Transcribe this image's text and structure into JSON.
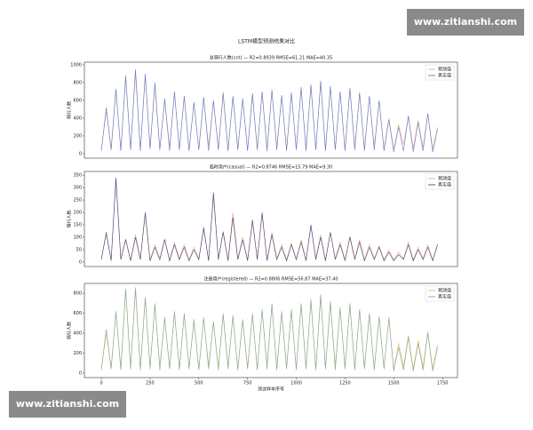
{
  "figure_title": "LSTM模型预测结果对比",
  "watermarks": [
    "www.zitianshi.com",
    "www.zitianshi.com"
  ],
  "chart_data": [
    {
      "type": "line",
      "title": "总骑行人数(cnt) — R2=0.8939  RMSE=61.21  MAE=40.35",
      "ylabel": "骑行人数",
      "x": [
        0,
        25,
        50,
        75,
        100,
        125,
        150,
        175,
        200,
        225,
        250,
        275,
        300,
        325,
        350,
        375,
        400,
        425,
        450,
        475,
        500,
        525,
        550,
        575,
        600,
        625,
        650,
        675,
        700,
        725,
        750,
        775,
        800,
        825,
        850,
        875,
        900,
        925,
        950,
        975,
        1000,
        1025,
        1050,
        1075,
        1100,
        1125,
        1150,
        1175,
        1200,
        1225,
        1250,
        1275,
        1300,
        1325,
        1350,
        1375,
        1400,
        1425,
        1450,
        1475,
        1500,
        1525,
        1550,
        1575,
        1600,
        1625,
        1650,
        1675,
        1700,
        1725
      ],
      "xlim": [
        -87,
        1827
      ],
      "ylim": [
        -50,
        1030
      ],
      "yticks": [
        0,
        200,
        400,
        600,
        800,
        1000
      ],
      "legend": "upper right",
      "series": [
        {
          "name": "预测值",
          "color": "#f2a474",
          "values": [
            40,
            480,
            60,
            700,
            50,
            850,
            60,
            900,
            40,
            870,
            70,
            760,
            60,
            600,
            80,
            680,
            60,
            640,
            50,
            560,
            60,
            620,
            90,
            590,
            60,
            660,
            50,
            630,
            70,
            600,
            50,
            650,
            60,
            680,
            60,
            700,
            80,
            640,
            60,
            670,
            70,
            720,
            60,
            750,
            60,
            790,
            50,
            740,
            60,
            690,
            50,
            720,
            80,
            670,
            60,
            640,
            90,
            590,
            60,
            400,
            50,
            330,
            100,
            430,
            60,
            380,
            70,
            460,
            50,
            300
          ]
        },
        {
          "name": "真实值",
          "color": "#4a6fd0",
          "values": [
            30,
            520,
            40,
            730,
            30,
            880,
            40,
            950,
            30,
            900,
            50,
            800,
            40,
            620,
            30,
            700,
            40,
            650,
            30,
            580,
            40,
            640,
            30,
            600,
            40,
            690,
            30,
            650,
            40,
            620,
            30,
            680,
            40,
            700,
            30,
            720,
            40,
            660,
            30,
            690,
            40,
            750,
            30,
            780,
            40,
            820,
            30,
            760,
            40,
            700,
            30,
            740,
            40,
            690,
            30,
            650,
            40,
            600,
            30,
            380,
            20,
            300,
            30,
            420,
            20,
            350,
            30,
            450,
            20,
            280
          ]
        }
      ]
    },
    {
      "type": "line",
      "title": "临时用户(casual) — R2=0.8746  RMSE=15.79  MAE=9.30",
      "ylabel": "骑行人数",
      "x": [
        0,
        25,
        50,
        75,
        100,
        125,
        150,
        175,
        200,
        225,
        250,
        275,
        300,
        325,
        350,
        375,
        400,
        425,
        450,
        475,
        500,
        525,
        550,
        575,
        600,
        625,
        650,
        675,
        700,
        725,
        750,
        775,
        800,
        825,
        850,
        875,
        900,
        925,
        950,
        975,
        1000,
        1025,
        1050,
        1075,
        1100,
        1125,
        1150,
        1175,
        1200,
        1225,
        1250,
        1275,
        1300,
        1325,
        1350,
        1375,
        1400,
        1425,
        1450,
        1475,
        1500,
        1525,
        1550,
        1575,
        1600,
        1625,
        1650,
        1675,
        1700,
        1725
      ],
      "xlim": [
        -87,
        1827
      ],
      "ylim": [
        -18,
        365
      ],
      "yticks": [
        0,
        50,
        100,
        150,
        200,
        250,
        300,
        350
      ],
      "legend": "upper right",
      "series": [
        {
          "name": "预测值",
          "color": "#f2a474",
          "values": [
            15,
            110,
            10,
            320,
            15,
            95,
            10,
            110,
            15,
            190,
            10,
            70,
            15,
            95,
            10,
            80,
            15,
            70,
            10,
            60,
            15,
            130,
            10,
            260,
            15,
            125,
            10,
            200,
            15,
            100,
            10,
            160,
            15,
            190,
            10,
            120,
            15,
            70,
            10,
            75,
            15,
            90,
            10,
            140,
            15,
            110,
            10,
            115,
            15,
            80,
            10,
            105,
            15,
            90,
            10,
            70,
            15,
            65,
            10,
            50,
            10,
            40,
            15,
            80,
            10,
            60,
            15,
            70,
            10,
            75
          ]
        },
        {
          "name": "真实值",
          "color": "#2b2f7a",
          "values": [
            10,
            120,
            5,
            340,
            10,
            90,
            5,
            100,
            10,
            200,
            5,
            60,
            10,
            90,
            5,
            70,
            10,
            60,
            5,
            50,
            10,
            140,
            5,
            280,
            10,
            120,
            5,
            180,
            10,
            90,
            5,
            170,
            10,
            200,
            5,
            110,
            10,
            60,
            5,
            70,
            10,
            80,
            5,
            150,
            10,
            100,
            5,
            120,
            10,
            70,
            5,
            100,
            10,
            80,
            5,
            60,
            10,
            60,
            5,
            40,
            5,
            30,
            10,
            70,
            5,
            50,
            10,
            60,
            5,
            70
          ]
        }
      ]
    },
    {
      "type": "line",
      "title": "注册用户(registered) — R2=0.8806  RMSE=56.87  MAE=37.40",
      "ylabel": "骑行人数",
      "xlabel": "测试样本序号",
      "x": [
        0,
        25,
        50,
        75,
        100,
        125,
        150,
        175,
        200,
        225,
        250,
        275,
        300,
        325,
        350,
        375,
        400,
        425,
        450,
        475,
        500,
        525,
        550,
        575,
        600,
        625,
        650,
        675,
        700,
        725,
        750,
        775,
        800,
        825,
        850,
        875,
        900,
        925,
        950,
        975,
        1000,
        1025,
        1050,
        1075,
        1100,
        1125,
        1150,
        1175,
        1200,
        1225,
        1250,
        1275,
        1300,
        1325,
        1350,
        1375,
        1400,
        1425,
        1450,
        1475,
        1500,
        1525,
        1550,
        1575,
        1600,
        1625,
        1650,
        1675,
        1700,
        1725
      ],
      "xlim": [
        -87,
        1827
      ],
      "xticks": [
        0,
        250,
        500,
        750,
        1000,
        1250,
        1500,
        1750
      ],
      "ylim": [
        -45,
        900
      ],
      "yticks": [
        0,
        200,
        400,
        600,
        800
      ],
      "legend": "upper right",
      "series": [
        {
          "name": "预测值",
          "color": "#f0b43c",
          "values": [
            50,
            400,
            60,
            600,
            50,
            820,
            60,
            830,
            50,
            740,
            60,
            680,
            70,
            540,
            60,
            600,
            50,
            580,
            60,
            520,
            50,
            540,
            80,
            500,
            60,
            580,
            70,
            560,
            50,
            520,
            60,
            580,
            50,
            620,
            80,
            680,
            60,
            600,
            70,
            620,
            50,
            680,
            60,
            720,
            50,
            760,
            60,
            700,
            80,
            640,
            60,
            680,
            50,
            620,
            60,
            580,
            50,
            550,
            60,
            540,
            40,
            300,
            60,
            380,
            40,
            330,
            60,
            420,
            40,
            290
          ]
        },
        {
          "name": "真实值",
          "color": "#6aa3a3",
          "values": [
            30,
            440,
            40,
            620,
            30,
            850,
            40,
            860,
            30,
            760,
            40,
            700,
            30,
            560,
            40,
            620,
            30,
            600,
            40,
            540,
            30,
            560,
            40,
            520,
            30,
            600,
            40,
            580,
            30,
            540,
            40,
            600,
            30,
            640,
            40,
            700,
            30,
            620,
            40,
            640,
            30,
            700,
            40,
            740,
            30,
            790,
            40,
            720,
            30,
            660,
            40,
            700,
            30,
            640,
            40,
            600,
            30,
            570,
            40,
            560,
            20,
            260,
            30,
            360,
            20,
            300,
            30,
            400,
            20,
            260
          ]
        }
      ]
    }
  ]
}
